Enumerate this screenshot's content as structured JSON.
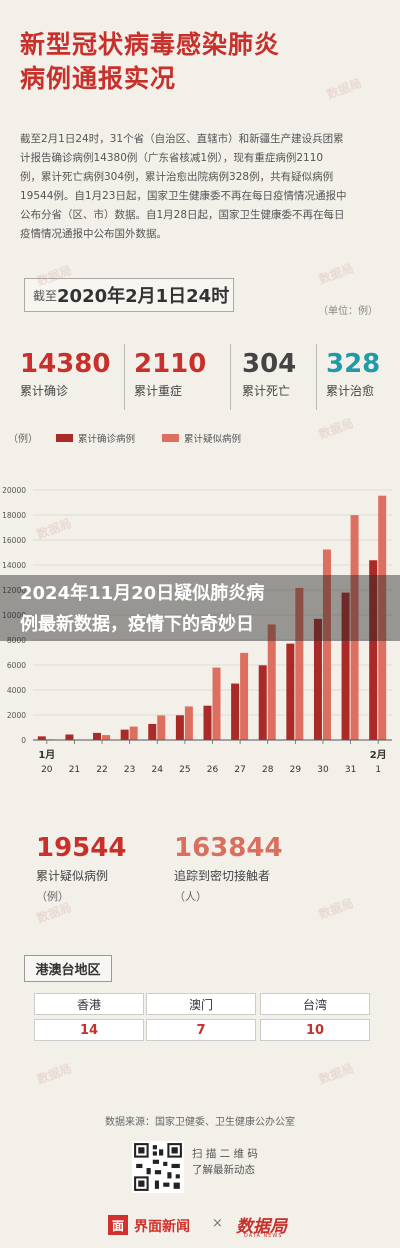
{
  "title_line1": "新型冠状病毒感染肺炎",
  "title_line2": "病例通报实况",
  "intro_lines": [
    "截至2月1日24时，31个省（自治区、直辖市）和新疆生产建设兵团累",
    "计报告确诊病例14380例（广东省核减1例），现有重症病例2110",
    "例，累计死亡病例304例，累计治愈出院病例328例，共有疑似病例",
    "19544例。自1月23日起，国家卫生健康委不再在每日疫情情况通报中",
    "公布分省（区、市）数据。自1月28日起，国家卫生健康委不再在每日",
    "疫情情况通报中公布国外数据。"
  ],
  "date_prefix": "截至",
  "date_main": "2020年2月1日24时",
  "unit_label": "（单位：例）",
  "stats": [
    {
      "value": "14380",
      "label": "累计确诊",
      "color": "#c7302b"
    },
    {
      "value": "2110",
      "label": "累计重症",
      "color": "#c7302b"
    },
    {
      "value": "304",
      "label": "累计死亡",
      "color": "#444444"
    },
    {
      "value": "328",
      "label": "累计治愈",
      "color": "#1f9aa6"
    }
  ],
  "overlay_line1": "2024年11月20日疑似肺炎病",
  "overlay_line2": "例最新数据，疫情下的奇妙日",
  "stats2": [
    {
      "value": "19544",
      "label": "累计疑似病例",
      "paren": "（例）"
    },
    {
      "value": "163844",
      "label": "追踪到密切接触者",
      "paren": "（人）"
    }
  ],
  "region_title": "港澳台地区",
  "regions": [
    {
      "name": "香港",
      "value": "14"
    },
    {
      "name": "澳门",
      "value": "7"
    },
    {
      "name": "台湾",
      "value": "10"
    }
  ],
  "source": "数据来源：国家卫健委、卫生健康公办公室",
  "scan_line1": "扫 描 二 维 码",
  "scan_line2": "了解最新动态",
  "logo_box_char": "面",
  "logo_jiemian": "界面新闻",
  "logo_x": "×",
  "logo_shuju": "数据局",
  "logo_shuju_sub": "DATA NEWS",
  "watermark_text": "数据局",
  "colors": {
    "confirmed": "#a92a26",
    "suspected": "#dc6f5f",
    "accent": "#c7302b"
  },
  "chart_data": {
    "type": "bar",
    "unit_label": "（例）",
    "month_start": "1月",
    "month_end": "2月",
    "categories": [
      "20日",
      "21日",
      "22日",
      "23日",
      "24日",
      "25日",
      "26日",
      "27日",
      "28日",
      "29日",
      "30日",
      "31日",
      "1日"
    ],
    "tick_labels": [
      "20",
      "21",
      "22",
      "23",
      "24",
      "25",
      "26",
      "27",
      "28",
      "29",
      "30",
      "31",
      "1"
    ],
    "series": [
      {
        "name": "累计确诊病例",
        "color": "#a92a26",
        "values": [
          291,
          440,
          571,
          830,
          1287,
          1975,
          2744,
          4515,
          5974,
          7711,
          9692,
          11791,
          14380
        ]
      },
      {
        "name": "累计疑似病例",
        "color": "#dc6f5f",
        "values": [
          54,
          37,
          393,
          1072,
          1965,
          2684,
          5794,
          6973,
          9239,
          12167,
          15238,
          17988,
          19544
        ]
      }
    ],
    "ylim": [
      0,
      20000
    ],
    "yticks": [
      0,
      2000,
      4000,
      6000,
      8000,
      10000,
      12000,
      14000,
      16000,
      18000,
      20000
    ],
    "grid": true,
    "legend": "top-left"
  }
}
